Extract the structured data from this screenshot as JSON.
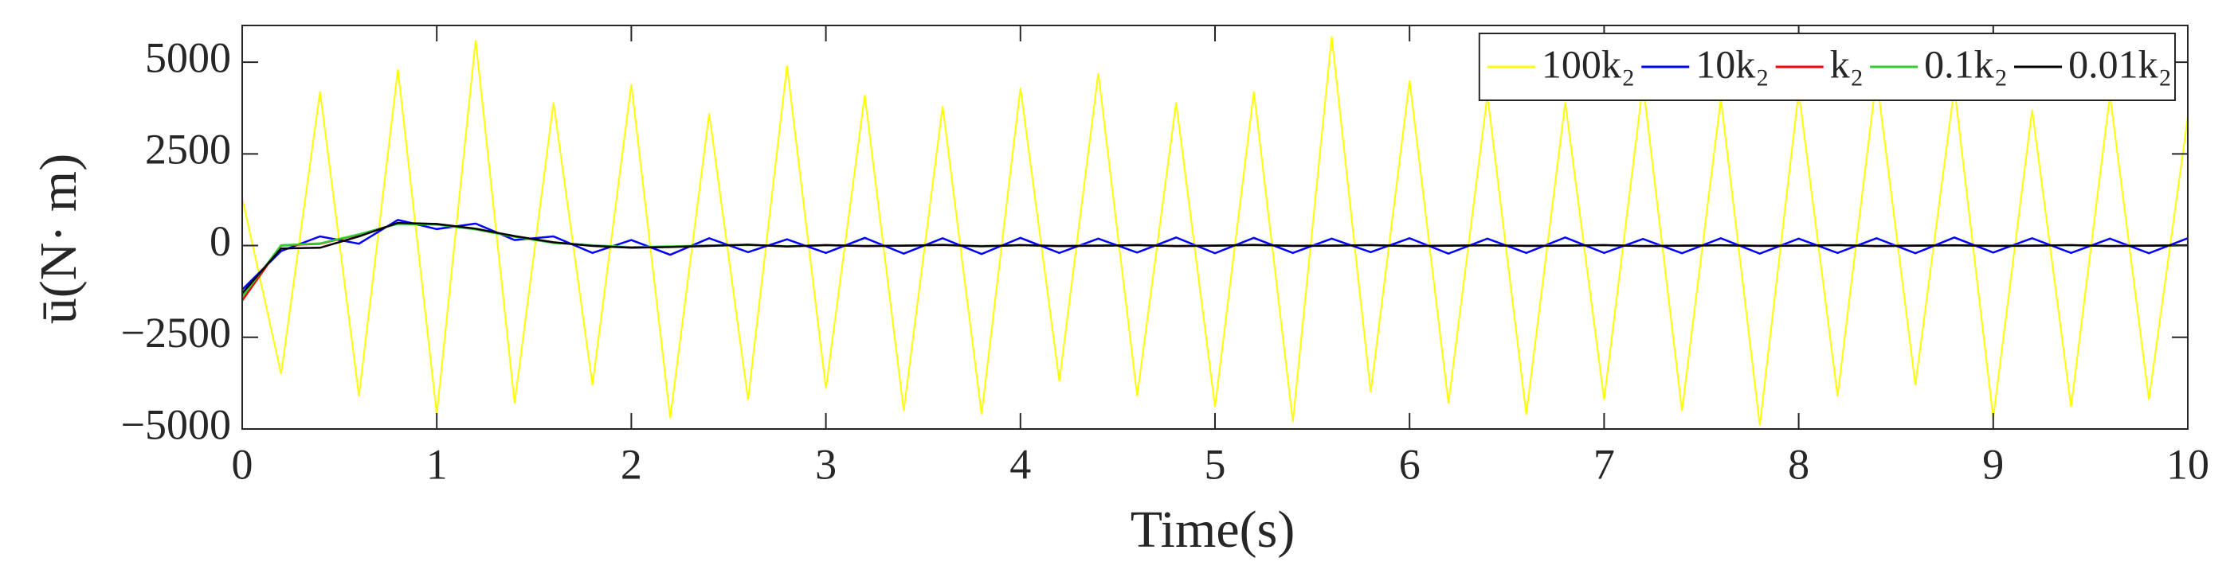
{
  "chart_data": {
    "type": "line",
    "xlabel": "Time(s)",
    "ylabel": "ū(N· m)",
    "x": [
      0,
      0.2,
      0.4,
      0.6,
      0.8,
      1,
      1.2,
      1.4,
      1.6,
      1.8,
      2,
      2.2,
      2.4,
      2.6,
      2.8,
      3,
      3.2,
      3.4,
      3.6,
      3.8,
      4,
      4.2,
      4.4,
      4.6,
      4.8,
      5,
      5.2,
      5.4,
      5.6,
      5.8,
      6,
      6.2,
      6.4,
      6.6,
      6.8,
      7,
      7.2,
      7.4,
      7.6,
      7.8,
      8,
      8.2,
      8.4,
      8.6,
      8.8,
      9,
      9.2,
      9.4,
      9.6,
      9.8,
      10
    ],
    "series": [
      {
        "name": "100k₂",
        "color": "#ffff00",
        "values": [
          1300,
          -3500,
          4200,
          -4100,
          4800,
          -4600,
          5600,
          -4300,
          3900,
          -3800,
          4400,
          -4700,
          3600,
          -4200,
          4900,
          -3900,
          4100,
          -4500,
          3800,
          -4600,
          4300,
          -3700,
          4700,
          -4100,
          3900,
          -4400,
          4200,
          -4800,
          5700,
          -4000,
          4500,
          -4300,
          4100,
          -4600,
          3900,
          -4200,
          4400,
          -4500,
          4000,
          -4900,
          4200,
          -4100,
          4600,
          -3800,
          4300,
          -4700,
          3700,
          -4400,
          4100,
          -4200,
          3500
        ]
      },
      {
        "name": "10k₂",
        "color": "#0000ff",
        "values": [
          -1200,
          -150,
          250,
          50,
          700,
          450,
          600,
          150,
          250,
          -200,
          150,
          -250,
          200,
          -180,
          170,
          -200,
          210,
          -220,
          200,
          -230,
          210,
          -200,
          190,
          -190,
          220,
          -210,
          210,
          -200,
          190,
          -180,
          200,
          -220,
          190,
          -200,
          220,
          -200,
          180,
          -210,
          200,
          -220,
          190,
          -200,
          200,
          -210,
          220,
          -190,
          200,
          -200,
          190,
          -210,
          200
        ]
      },
      {
        "name": "k₂",
        "color": "#ff0000",
        "values": [
          -1500,
          0,
          50,
          300,
          600,
          580,
          450,
          250,
          80,
          0,
          -50,
          -30,
          0,
          20,
          -20,
          10,
          -10,
          0,
          15,
          -15,
          10,
          -10,
          0,
          10,
          -10,
          0,
          15,
          -5,
          0,
          10,
          -10,
          0,
          5,
          -5,
          0,
          10,
          -10,
          0,
          5,
          -5,
          0,
          10,
          -10,
          0,
          5,
          -5,
          0,
          10,
          -10,
          0,
          5
        ]
      },
      {
        "name": "0.1k₂",
        "color": "#33cc33",
        "values": [
          -1400,
          10,
          60,
          310,
          590,
          570,
          440,
          240,
          70,
          10,
          -40,
          -20,
          5,
          15,
          -15,
          5,
          -5,
          5,
          10,
          -10,
          5,
          -5,
          5,
          5,
          -5,
          5,
          10,
          0,
          5,
          5,
          -5,
          5,
          0,
          0,
          5,
          5,
          -5,
          5,
          0,
          0,
          5,
          5,
          -5,
          5,
          0,
          0,
          5,
          5,
          -5,
          5,
          0
        ]
      },
      {
        "name": "0.01k₂",
        "color": "#000000",
        "values": [
          -1300,
          -80,
          -60,
          250,
          620,
          590,
          460,
          260,
          90,
          -10,
          -60,
          -40,
          -10,
          25,
          -25,
          15,
          -15,
          -5,
          20,
          -20,
          15,
          -15,
          -5,
          15,
          -15,
          -5,
          20,
          -10,
          -5,
          15,
          -15,
          -5,
          10,
          -10,
          -5,
          15,
          -15,
          -5,
          10,
          -10,
          -5,
          15,
          -15,
          -5,
          10,
          -10,
          -5,
          15,
          -15,
          -5,
          10
        ]
      }
    ],
    "xlim": [
      0,
      10
    ],
    "xticks": [
      0,
      1,
      2,
      3,
      4,
      5,
      6,
      7,
      8,
      9,
      10
    ],
    "ylim": [
      -5000,
      6000
    ],
    "yticks": [
      {
        "value": -5000,
        "label": "−5000"
      },
      {
        "value": -2500,
        "label": "−2500"
      },
      0,
      2500,
      5000
    ],
    "legend": "northeast"
  }
}
